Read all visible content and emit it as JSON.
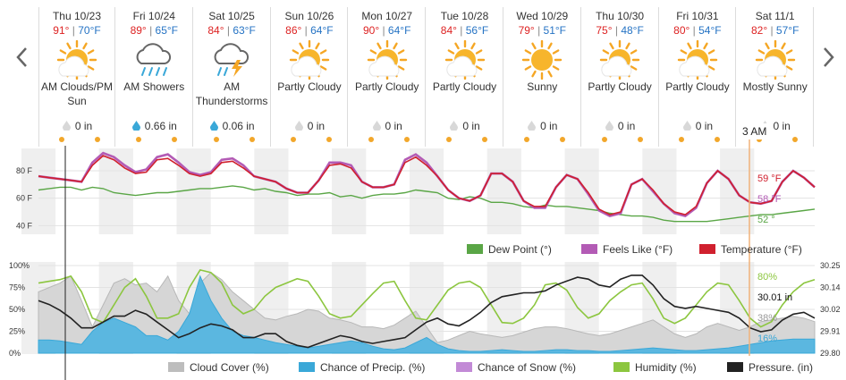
{
  "days": [
    {
      "date": "Thu 10/23",
      "hi": "91°",
      "lo": "70°F",
      "cond": "AM Clouds/PM Sun",
      "icon": "partly-sunny-icon",
      "precip": "0 in",
      "rain": false
    },
    {
      "date": "Fri 10/24",
      "hi": "89°",
      "lo": "65°F",
      "cond": "AM Showers",
      "icon": "showers-icon",
      "precip": "0.66 in",
      "rain": true
    },
    {
      "date": "Sat 10/25",
      "hi": "84°",
      "lo": "63°F",
      "cond": "AM Thunderstorms",
      "icon": "thunderstorm-icon",
      "precip": "0.06 in",
      "rain": true
    },
    {
      "date": "Sun 10/26",
      "hi": "86°",
      "lo": "64°F",
      "cond": "Partly Cloudy",
      "icon": "partly-sunny-icon",
      "precip": "0 in",
      "rain": false
    },
    {
      "date": "Mon 10/27",
      "hi": "90°",
      "lo": "64°F",
      "cond": "Partly Cloudy",
      "icon": "partly-sunny-icon",
      "precip": "0 in",
      "rain": false
    },
    {
      "date": "Tue 10/28",
      "hi": "84°",
      "lo": "56°F",
      "cond": "Partly Cloudy",
      "icon": "partly-sunny-icon",
      "precip": "0 in",
      "rain": false
    },
    {
      "date": "Wed 10/29",
      "hi": "79°",
      "lo": "51°F",
      "cond": "Sunny",
      "icon": "sun-icon",
      "precip": "0 in",
      "rain": false
    },
    {
      "date": "Thu 10/30",
      "hi": "75°",
      "lo": "48°F",
      "cond": "Partly Cloudy",
      "icon": "partly-sunny-icon",
      "precip": "0 in",
      "rain": false
    },
    {
      "date": "Fri 10/31",
      "hi": "80°",
      "lo": "54°F",
      "cond": "Partly Cloudy",
      "icon": "partly-sunny-icon",
      "precip": "0 in",
      "rain": false
    },
    {
      "date": "Sat 11/1",
      "hi": "82°",
      "lo": "57°F",
      "cond": "Mostly Sunny",
      "icon": "partly-sunny-icon",
      "precip": "0 in",
      "rain": false
    }
  ],
  "tooltip_time": "3 AM",
  "colors": {
    "temperature": "#d0202e",
    "feels_like": "#b35bb5",
    "dew_point": "#5aa646",
    "cloud": "#bdbdbd",
    "precip": "#3aa8d8",
    "snow": "#c28ad6",
    "humidity": "#8cc63f",
    "pressure": "#222222",
    "night": "#efefef"
  },
  "chart_data": [
    {
      "type": "line",
      "yticks": [
        "80 F",
        "60 F",
        "40 F"
      ],
      "ylim": [
        35,
        95
      ],
      "legend": [
        "Dew Point (°)",
        "Feels Like (°F)",
        "Temperature (°F)"
      ],
      "callouts": {
        "temperature": "59 °F",
        "feels_like": "58 °F",
        "dew_point": "52 °"
      },
      "temperature": [
        76,
        75,
        74,
        73,
        72,
        84,
        91,
        88,
        82,
        78,
        79,
        88,
        89,
        84,
        78,
        76,
        78,
        86,
        87,
        82,
        76,
        74,
        72,
        67,
        64,
        64,
        73,
        84,
        85,
        82,
        72,
        68,
        68,
        70,
        86,
        90,
        84,
        76,
        66,
        60,
        58,
        62,
        78,
        78,
        72,
        58,
        54,
        54,
        68,
        77,
        74,
        64,
        52,
        48,
        50,
        70,
        74,
        66,
        56,
        50,
        48,
        54,
        71,
        80,
        74,
        62,
        57,
        56,
        58,
        72,
        80,
        75,
        68
      ],
      "feels_like": [
        76,
        75,
        74,
        73,
        72,
        86,
        93,
        90,
        84,
        79,
        81,
        90,
        92,
        86,
        79,
        77,
        79,
        88,
        89,
        84,
        76,
        74,
        72,
        67,
        64,
        64,
        73,
        86,
        86,
        84,
        72,
        68,
        68,
        70,
        88,
        92,
        86,
        76,
        66,
        60,
        58,
        62,
        78,
        78,
        72,
        58,
        53,
        53,
        68,
        77,
        74,
        63,
        51,
        47,
        49,
        70,
        74,
        65,
        56,
        49,
        47,
        53,
        71,
        80,
        74,
        62,
        57,
        56,
        58,
        72,
        80,
        75,
        68
      ],
      "dew_point": [
        66,
        67,
        68,
        68,
        66,
        68,
        67,
        64,
        63,
        62,
        63,
        64,
        64,
        65,
        66,
        67,
        67,
        68,
        69,
        68,
        66,
        67,
        65,
        64,
        62,
        63,
        63,
        64,
        61,
        62,
        60,
        62,
        63,
        63,
        64,
        66,
        65,
        64,
        60,
        59,
        61,
        60,
        57,
        57,
        56,
        54,
        53,
        55,
        54,
        54,
        53,
        52,
        51,
        49,
        48,
        47,
        47,
        46,
        44,
        43,
        43,
        43,
        43,
        44,
        45,
        46,
        47,
        48,
        48,
        49,
        50,
        51,
        52
      ]
    },
    {
      "type": "line",
      "yticks": [
        "100%",
        "75%",
        "50%",
        "25%",
        "0%"
      ],
      "y2ticks": [
        "30.25",
        "30.14",
        "30.02",
        "29.91",
        "29.80"
      ],
      "ylim": [
        0,
        100
      ],
      "y2lim": [
        29.8,
        30.25
      ],
      "legend": [
        "Cloud Cover (%)",
        "Chance of Precip. (%)",
        "Chance of Snow (%)",
        "Humidity (%)",
        "Pressure. (in)"
      ],
      "callouts": {
        "humidity": "80%",
        "pressure": "30.01 in",
        "cloud": "38%",
        "precip": "16%"
      },
      "cloud": [
        70,
        75,
        80,
        88,
        60,
        30,
        55,
        80,
        85,
        78,
        80,
        70,
        88,
        60,
        45,
        80,
        92,
        84,
        70,
        60,
        50,
        40,
        38,
        42,
        45,
        50,
        48,
        40,
        38,
        35,
        30,
        30,
        28,
        32,
        40,
        48,
        30,
        12,
        15,
        20,
        25,
        22,
        20,
        18,
        20,
        24,
        28,
        30,
        30,
        28,
        25,
        22,
        20,
        22,
        26,
        30,
        34,
        38,
        30,
        22,
        18,
        22,
        30,
        34,
        30,
        26,
        30,
        36,
        38,
        40,
        42,
        40,
        36
      ],
      "precip": [
        15,
        15,
        14,
        12,
        10,
        25,
        35,
        40,
        35,
        30,
        20,
        20,
        15,
        25,
        45,
        88,
        60,
        40,
        25,
        20,
        18,
        15,
        12,
        10,
        8,
        6,
        8,
        10,
        12,
        14,
        12,
        8,
        5,
        4,
        6,
        12,
        18,
        10,
        5,
        3,
        2,
        2,
        3,
        4,
        3,
        2,
        2,
        3,
        4,
        4,
        3,
        3,
        2,
        2,
        3,
        4,
        5,
        6,
        5,
        4,
        3,
        3,
        4,
        5,
        6,
        8,
        10,
        12,
        14,
        15,
        16,
        16,
        16
      ],
      "humidity": [
        80,
        82,
        84,
        88,
        70,
        40,
        35,
        55,
        75,
        85,
        65,
        40,
        40,
        45,
        75,
        95,
        92,
        80,
        55,
        45,
        50,
        65,
        75,
        80,
        85,
        82,
        65,
        45,
        40,
        42,
        55,
        68,
        80,
        82,
        60,
        40,
        38,
        55,
        72,
        80,
        82,
        75,
        55,
        35,
        34,
        40,
        55,
        78,
        80,
        72,
        52,
        40,
        45,
        60,
        70,
        78,
        80,
        62,
        40,
        34,
        40,
        55,
        70,
        80,
        78,
        60,
        40,
        30,
        36,
        55,
        70,
        80,
        84
      ],
      "pressure": [
        30.07,
        30.05,
        30.02,
        29.98,
        29.93,
        29.93,
        29.96,
        29.99,
        29.99,
        30.02,
        30.0,
        29.96,
        29.92,
        29.88,
        29.9,
        29.93,
        29.95,
        29.94,
        29.92,
        29.88,
        29.88,
        29.9,
        29.9,
        29.86,
        29.84,
        29.83,
        29.85,
        29.87,
        29.89,
        29.88,
        29.86,
        29.85,
        29.86,
        29.87,
        29.88,
        29.92,
        29.96,
        29.98,
        29.95,
        29.94,
        29.97,
        30.01,
        30.06,
        30.09,
        30.1,
        30.11,
        30.11,
        30.12,
        30.15,
        30.17,
        30.19,
        30.18,
        30.15,
        30.14,
        30.18,
        30.2,
        30.2,
        30.15,
        30.08,
        30.04,
        30.03,
        30.04,
        30.03,
        30.02,
        30.01,
        29.98,
        29.93,
        29.91,
        29.92,
        29.97,
        30.0,
        30.01,
        29.98
      ],
      "snow": []
    }
  ]
}
